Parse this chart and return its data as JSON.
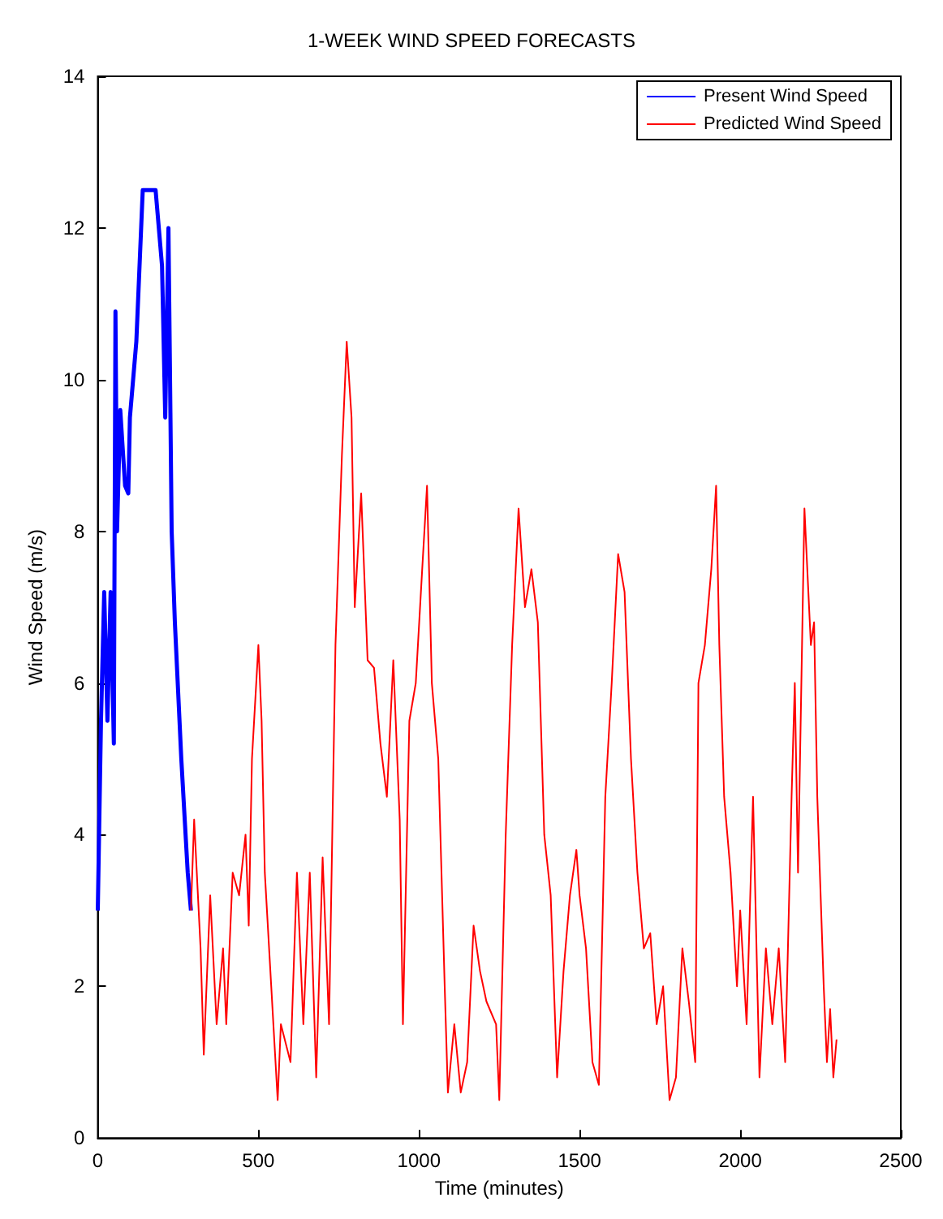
{
  "chart_data": {
    "type": "line",
    "title": "1-WEEK WIND SPEED FORECASTS",
    "xlabel": "Time (minutes)",
    "ylabel": "Wind Speed (m/s)",
    "xlim": [
      0,
      2500
    ],
    "xticks": [
      0,
      500,
      1000,
      1500,
      2000,
      2500
    ],
    "ylim": [
      0,
      14
    ],
    "yticks": [
      0,
      2,
      4,
      6,
      8,
      10,
      12,
      14
    ],
    "grid": false,
    "legend": "top right",
    "marker": "none",
    "line_style": "solid",
    "series": [
      {
        "name": "Present Wind Speed",
        "color": "#0000ff",
        "x": [
          0,
          10,
          20,
          30,
          40,
          50,
          55,
          60,
          70,
          85,
          95,
          100,
          120,
          140,
          180,
          200,
          210,
          220,
          230,
          240,
          260,
          280,
          290
        ],
        "values": [
          3,
          5.5,
          7.2,
          5.5,
          7.2,
          5.2,
          10.9,
          8,
          9.6,
          8.6,
          8.5,
          9.5,
          10.5,
          12.5,
          12.5,
          11.5,
          9.5,
          12,
          8,
          6.8,
          5,
          3.5,
          3
        ]
      },
      {
        "name": "Predicted Wind Speed",
        "color": "#ff0000",
        "x": [
          290,
          300,
          320,
          330,
          350,
          370,
          390,
          400,
          420,
          440,
          460,
          470,
          480,
          500,
          510,
          520,
          540,
          560,
          570,
          600,
          620,
          640,
          660,
          680,
          700,
          720,
          740,
          760,
          775,
          790,
          800,
          820,
          840,
          860,
          880,
          900,
          920,
          940,
          950,
          970,
          990,
          1010,
          1025,
          1040,
          1060,
          1080,
          1090,
          1110,
          1130,
          1150,
          1170,
          1190,
          1210,
          1240,
          1250,
          1270,
          1290,
          1310,
          1330,
          1350,
          1370,
          1390,
          1410,
          1430,
          1450,
          1470,
          1490,
          1500,
          1520,
          1540,
          1560,
          1580,
          1600,
          1620,
          1640,
          1660,
          1680,
          1700,
          1720,
          1740,
          1760,
          1780,
          1800,
          1820,
          1840,
          1860,
          1870,
          1890,
          1910,
          1925,
          1935,
          1950,
          1970,
          1990,
          2000,
          2020,
          2040,
          2060,
          2080,
          2100,
          2120,
          2140,
          2160,
          2170,
          2180,
          2200,
          2220,
          2230,
          2240,
          2260,
          2270,
          2280,
          2290,
          2300
        ],
        "values": [
          3,
          4.2,
          2.5,
          1.1,
          3.2,
          1.5,
          2.5,
          1.5,
          3.5,
          3.2,
          4,
          2.8,
          5,
          6.5,
          5.5,
          3.5,
          2,
          0.5,
          1.5,
          1,
          3.5,
          1.5,
          3.5,
          0.8,
          3.7,
          1.5,
          6.5,
          9,
          10.5,
          9.5,
          7,
          8.5,
          6.3,
          6.2,
          5.2,
          4.5,
          6.3,
          4.2,
          1.5,
          5.5,
          6,
          7.5,
          8.6,
          6,
          5,
          2,
          0.6,
          1.5,
          0.6,
          1,
          2.8,
          2.2,
          1.8,
          1.5,
          0.5,
          4,
          6.5,
          8.3,
          7,
          7.5,
          6.8,
          4,
          3.2,
          0.8,
          2.2,
          3.2,
          3.8,
          3.2,
          2.5,
          1,
          0.7,
          4.5,
          6,
          7.7,
          7.2,
          5,
          3.5,
          2.5,
          2.7,
          1.5,
          2,
          0.5,
          0.8,
          2.5,
          1.8,
          1,
          6,
          6.5,
          7.5,
          8.6,
          6.5,
          4.5,
          3.5,
          2,
          3,
          1.5,
          4.5,
          0.8,
          2.5,
          1.5,
          2.5,
          1,
          4.5,
          6,
          3.5,
          8.3,
          6.5,
          6.8,
          4.5,
          2,
          1,
          1.7,
          0.8,
          1.3
        ]
      }
    ]
  }
}
